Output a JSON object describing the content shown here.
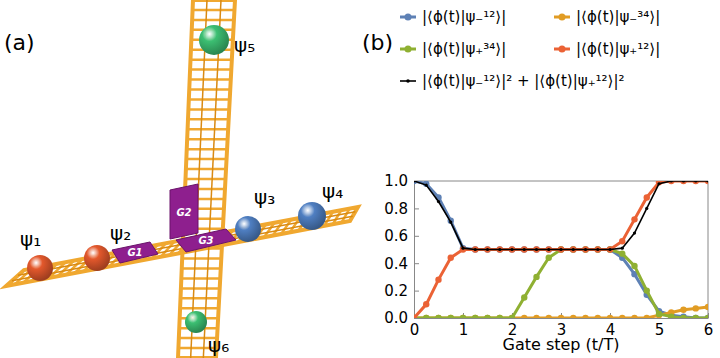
{
  "diagram": {
    "label": "(a)",
    "qubits": [
      {
        "label": "ψ₁",
        "color": "#e3582c"
      },
      {
        "label": "ψ₂",
        "color": "#e3582c"
      },
      {
        "label": "ψ₃",
        "color": "#4f7fc2"
      },
      {
        "label": "ψ₄",
        "color": "#4f7fc2"
      },
      {
        "label": "ψ₅",
        "color": "#3cbf72"
      },
      {
        "label": "ψ₆",
        "color": "#3cbf72"
      }
    ],
    "gates": [
      "G1",
      "G2",
      "G3"
    ]
  },
  "chart_data": {
    "type": "line",
    "title": "(b)",
    "xlabel": "Gate step (t/T)",
    "legend": "top",
    "x": [
      0,
      0.25,
      0.5,
      0.75,
      1,
      1.25,
      1.5,
      1.75,
      2,
      2.25,
      2.5,
      2.75,
      3,
      3.25,
      3.5,
      3.75,
      4,
      4.25,
      4.5,
      4.75,
      5,
      5.25,
      5.5,
      5.75,
      6
    ],
    "series": [
      {
        "name": "|⟨ϕ(t)|ψ₋¹²⟩|",
        "color": "#5e81b5",
        "marker": "circle",
        "values": [
          1.0,
          0.98,
          0.88,
          0.71,
          0.51,
          0.5,
          0.5,
          0.5,
          0.5,
          0.5,
          0.5,
          0.5,
          0.5,
          0.5,
          0.5,
          0.5,
          0.5,
          0.44,
          0.32,
          0.17,
          0.05,
          0.02,
          0.01,
          0.0,
          0.0
        ]
      },
      {
        "name": "|⟨ϕ(t)|ψ₋³⁴⟩|",
        "color": "#e19c24",
        "marker": "circle",
        "values": [
          0,
          0,
          0,
          0,
          0,
          0,
          0,
          0,
          0,
          0,
          0,
          0,
          0,
          0,
          0,
          0,
          0,
          0,
          0,
          0,
          0.02,
          0.04,
          0.06,
          0.07,
          0.08
        ]
      },
      {
        "name": "|⟨ϕ(t)|ψ₊³⁴⟩|",
        "color": "#8fb032",
        "marker": "circle",
        "values": [
          0,
          0,
          0,
          0,
          0,
          0,
          0,
          0,
          0,
          0.15,
          0.3,
          0.44,
          0.5,
          0.5,
          0.5,
          0.5,
          0.5,
          0.47,
          0.38,
          0.2,
          0.03,
          0.01,
          0,
          0,
          0
        ]
      },
      {
        "name": "|⟨ϕ(t)|ψ₊¹²⟩|",
        "color": "#eb6235",
        "marker": "circle",
        "values": [
          0,
          0.1,
          0.28,
          0.44,
          0.5,
          0.5,
          0.5,
          0.5,
          0.5,
          0.5,
          0.5,
          0.5,
          0.5,
          0.5,
          0.5,
          0.5,
          0.5,
          0.56,
          0.72,
          0.88,
          0.99,
          1.0,
          1.0,
          1.0,
          1.0
        ]
      },
      {
        "name": "|⟨ϕ(t)|ψ₋¹²⟩|² + |⟨ϕ(t)|ψ₊¹²⟩|²",
        "color": "#000000",
        "marker": "dot",
        "values": [
          1.0,
          0.97,
          0.85,
          0.7,
          0.51,
          0.5,
          0.5,
          0.5,
          0.5,
          0.5,
          0.5,
          0.5,
          0.5,
          0.5,
          0.5,
          0.5,
          0.5,
          0.51,
          0.62,
          0.8,
          0.98,
          1.0,
          1.0,
          1.0,
          1.0
        ]
      }
    ],
    "xlim": [
      0,
      6
    ],
    "xticks": [
      0,
      1,
      2,
      3,
      4,
      5,
      6
    ],
    "ylim": [
      0,
      1
    ],
    "yticks": [
      {
        "value": 0,
        "label": "0.0"
      },
      0.2,
      0.4,
      0.6,
      0.8,
      {
        "value": 1,
        "label": "1.0"
      }
    ]
  }
}
